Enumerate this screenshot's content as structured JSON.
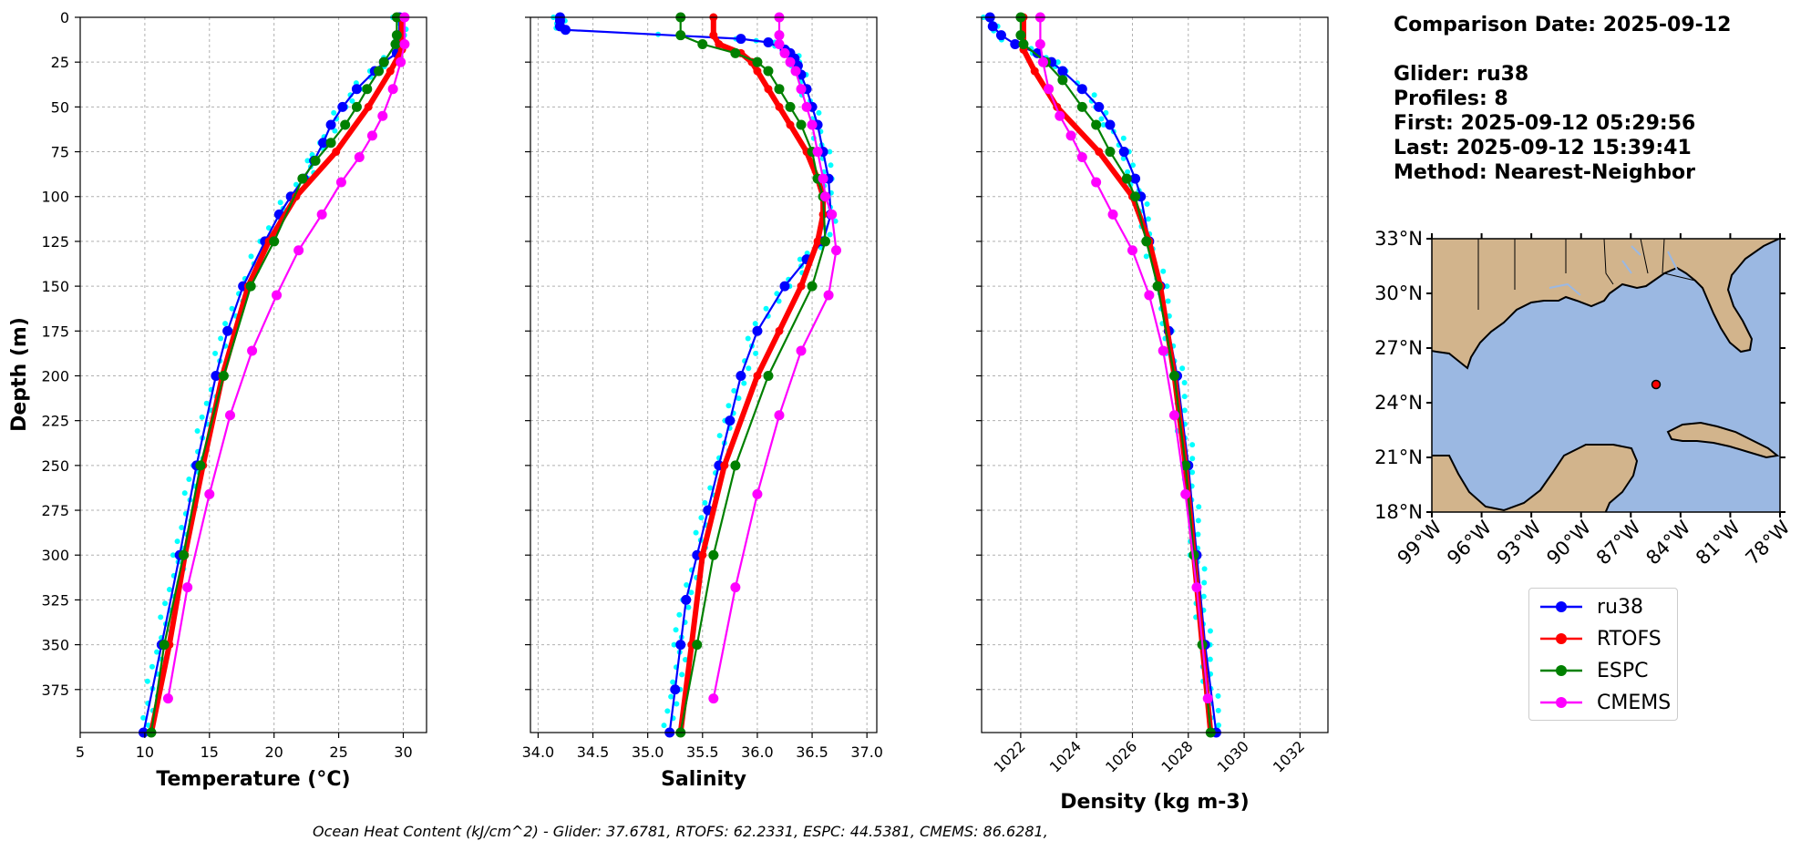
{
  "info": {
    "comparison_date": "Comparison Date: 2025-09-12",
    "glider": "Glider: ru38",
    "profiles": "Profiles: 8",
    "first": "First: 2025-09-12 05:29:56",
    "last": "Last: 2025-09-12 15:39:41",
    "method": "Method: Nearest-Neighbor"
  },
  "footer": "Ocean Heat Content (kJ/cm^2) - Glider: 37.6781,  RTOFS: 62.2331,  ESPC: 44.5381,  CMEMS: 86.6281,",
  "legend": [
    {
      "label": "ru38",
      "color": "#0000ff"
    },
    {
      "label": "RTOFS",
      "color": "#ff0000"
    },
    {
      "label": "ESPC",
      "color": "#008000"
    },
    {
      "label": "CMEMS",
      "color": "#ff00ff"
    }
  ],
  "colors": {
    "glider_raw": "#00ffff",
    "land": "#d2b48c",
    "ocean": "#9bb8e2",
    "station": "#ff0000"
  },
  "chart_data": [
    {
      "type": "line",
      "xlabel": "Temperature (°C)",
      "ylabel": "Depth (m)",
      "xlim": [
        5,
        31.8
      ],
      "ylim": [
        399,
        0
      ],
      "xticks": [
        5,
        10,
        15,
        20,
        25,
        30
      ],
      "yticks": [
        0,
        25,
        50,
        75,
        100,
        125,
        150,
        175,
        200,
        225,
        250,
        275,
        300,
        325,
        350,
        375
      ],
      "grid": true,
      "series": [
        {
          "name": "ru38",
          "color": "#0000ff",
          "depth": [
            0,
            10,
            20,
            25,
            30,
            40,
            50,
            60,
            70,
            80,
            90,
            100,
            110,
            125,
            150,
            175,
            200,
            250,
            300,
            350,
            399
          ],
          "values": [
            29.7,
            29.7,
            29.5,
            28.5,
            27.8,
            26.4,
            25.3,
            24.4,
            23.8,
            23.1,
            22.3,
            21.3,
            20.4,
            19.3,
            17.6,
            16.4,
            15.5,
            14.0,
            12.7,
            11.3,
            9.9
          ]
        },
        {
          "name": "RTOFS",
          "color": "#ff0000",
          "depth": [
            0,
            18,
            30,
            50,
            75,
            100,
            125,
            150,
            200,
            250,
            300,
            350,
            399
          ],
          "values": [
            29.9,
            29.9,
            29.0,
            27.3,
            24.8,
            21.7,
            19.6,
            18.0,
            16.0,
            14.5,
            13.1,
            11.9,
            10.5
          ]
        },
        {
          "name": "ESPC",
          "color": "#008000",
          "depth": [
            0,
            10,
            15,
            25,
            30,
            40,
            50,
            60,
            70,
            80,
            90,
            125,
            150,
            200,
            250,
            300,
            350,
            399
          ],
          "values": [
            29.5,
            29.5,
            29.4,
            28.5,
            28.1,
            27.2,
            26.4,
            25.5,
            24.4,
            23.2,
            22.2,
            20.0,
            18.2,
            16.1,
            14.3,
            13.0,
            11.5,
            10.5
          ]
        },
        {
          "name": "CMEMS",
          "color": "#ff00ff",
          "depth": [
            0,
            15,
            25,
            40,
            55,
            66,
            78,
            92,
            110,
            130,
            155,
            186,
            222,
            266,
            318,
            380
          ],
          "values": [
            30.1,
            30.1,
            29.8,
            29.2,
            28.4,
            27.6,
            26.6,
            25.2,
            23.7,
            21.9,
            20.2,
            18.3,
            16.6,
            15.0,
            13.3,
            11.8
          ]
        }
      ]
    },
    {
      "type": "line",
      "xlabel": "Salinity",
      "ylabel": "",
      "xlim": [
        33.93,
        37.09
      ],
      "ylim": [
        399,
        0
      ],
      "xticks": [
        34.0,
        34.5,
        35.0,
        35.5,
        36.0,
        36.5,
        37.0
      ],
      "grid": true,
      "series": [
        {
          "name": "ru38",
          "color": "#0000ff",
          "depth": [
            0,
            2,
            5,
            7,
            12,
            14,
            18,
            20,
            23,
            27,
            32,
            40,
            50,
            60,
            75,
            90,
            110,
            125,
            135,
            150,
            175,
            200,
            225,
            250,
            275,
            300,
            325,
            350,
            375,
            399
          ],
          "values": [
            34.2,
            34.2,
            34.2,
            34.25,
            35.85,
            36.1,
            36.25,
            36.3,
            36.34,
            36.37,
            36.4,
            36.45,
            36.5,
            36.55,
            36.6,
            36.65,
            36.67,
            36.6,
            36.45,
            36.25,
            36.0,
            35.85,
            35.75,
            35.65,
            35.55,
            35.45,
            35.35,
            35.3,
            35.25,
            35.2
          ]
        },
        {
          "name": "RTOFS",
          "color": "#ff0000",
          "depth": [
            0,
            10,
            15,
            20,
            25,
            30,
            40,
            50,
            60,
            75,
            90,
            100,
            110,
            125,
            150,
            175,
            200,
            250,
            300,
            350,
            399
          ],
          "values": [
            35.6,
            35.6,
            35.65,
            35.85,
            35.95,
            36.0,
            36.1,
            36.2,
            36.3,
            36.45,
            36.55,
            36.6,
            36.6,
            36.55,
            36.4,
            36.2,
            36.0,
            35.7,
            35.5,
            35.4,
            35.3
          ]
        },
        {
          "name": "ESPC",
          "color": "#008000",
          "depth": [
            0,
            10,
            15,
            20,
            25,
            30,
            40,
            50,
            60,
            75,
            90,
            100,
            125,
            150,
            200,
            250,
            300,
            350,
            399
          ],
          "values": [
            35.3,
            35.3,
            35.5,
            35.8,
            36.0,
            36.1,
            36.2,
            36.3,
            36.4,
            36.5,
            36.55,
            36.6,
            36.62,
            36.5,
            36.1,
            35.8,
            35.6,
            35.45,
            35.3
          ]
        },
        {
          "name": "CMEMS",
          "color": "#ff00ff",
          "depth": [
            0,
            10,
            15,
            20,
            25,
            30,
            40,
            50,
            60,
            75,
            90,
            100,
            110,
            130,
            155,
            186,
            222,
            266,
            318,
            380
          ],
          "values": [
            36.2,
            36.2,
            36.2,
            36.25,
            36.3,
            36.35,
            36.4,
            36.45,
            36.5,
            36.55,
            36.6,
            36.62,
            36.68,
            36.72,
            36.65,
            36.4,
            36.2,
            36.0,
            35.8,
            35.6
          ]
        }
      ]
    },
    {
      "type": "line",
      "xlabel": "Density (kg m-3)",
      "ylabel": "",
      "xlim": [
        1020.6,
        1033.0
      ],
      "ylim": [
        399,
        0
      ],
      "xticks": [
        1022,
        1024,
        1026,
        1028,
        1030,
        1032
      ],
      "grid": true,
      "series": [
        {
          "name": "ru38",
          "color": "#0000ff",
          "depth": [
            0,
            5,
            10,
            15,
            20,
            25,
            30,
            40,
            50,
            60,
            75,
            90,
            100,
            125,
            150,
            175,
            200,
            250,
            300,
            350,
            399
          ],
          "values": [
            1020.9,
            1021.0,
            1021.3,
            1021.8,
            1022.6,
            1023.1,
            1023.5,
            1024.2,
            1024.8,
            1025.2,
            1025.7,
            1026.1,
            1026.3,
            1026.6,
            1027.0,
            1027.3,
            1027.6,
            1028.0,
            1028.3,
            1028.6,
            1029.0
          ]
        },
        {
          "name": "RTOFS",
          "color": "#ff0000",
          "depth": [
            0,
            18,
            30,
            50,
            75,
            100,
            125,
            150,
            200,
            250,
            300,
            350,
            399
          ],
          "values": [
            1022.1,
            1022.1,
            1022.5,
            1023.3,
            1024.8,
            1026.0,
            1026.6,
            1027.0,
            1027.5,
            1027.9,
            1028.2,
            1028.5,
            1028.8
          ]
        },
        {
          "name": "ESPC",
          "color": "#008000",
          "depth": [
            0,
            10,
            15,
            25,
            35,
            50,
            60,
            75,
            90,
            100,
            125,
            150,
            200,
            250,
            300,
            350,
            399
          ],
          "values": [
            1022.0,
            1022.0,
            1022.1,
            1022.9,
            1023.5,
            1024.2,
            1024.7,
            1025.2,
            1025.8,
            1026.1,
            1026.5,
            1026.9,
            1027.5,
            1027.9,
            1028.2,
            1028.5,
            1028.8
          ]
        },
        {
          "name": "CMEMS",
          "color": "#ff00ff",
          "depth": [
            0,
            15,
            25,
            40,
            55,
            66,
            78,
            92,
            110,
            130,
            155,
            186,
            222,
            266,
            318,
            380
          ],
          "values": [
            1022.7,
            1022.7,
            1022.8,
            1023.0,
            1023.4,
            1023.8,
            1024.2,
            1024.7,
            1025.3,
            1026.0,
            1026.6,
            1027.1,
            1027.5,
            1027.9,
            1028.3,
            1028.7
          ]
        }
      ]
    },
    {
      "type": "map",
      "lon_range": [
        -99,
        -78
      ],
      "lat_range": [
        18,
        33
      ],
      "xtick_labels": [
        "99°W",
        "96°W",
        "93°W",
        "90°W",
        "87°W",
        "84°W",
        "81°W",
        "78°W"
      ],
      "ytick_labels": [
        "33°N",
        "30°N",
        "27°N",
        "24°N",
        "21°N",
        "18°N"
      ],
      "station": {
        "lon": -85.5,
        "lat": 25.2
      }
    }
  ]
}
